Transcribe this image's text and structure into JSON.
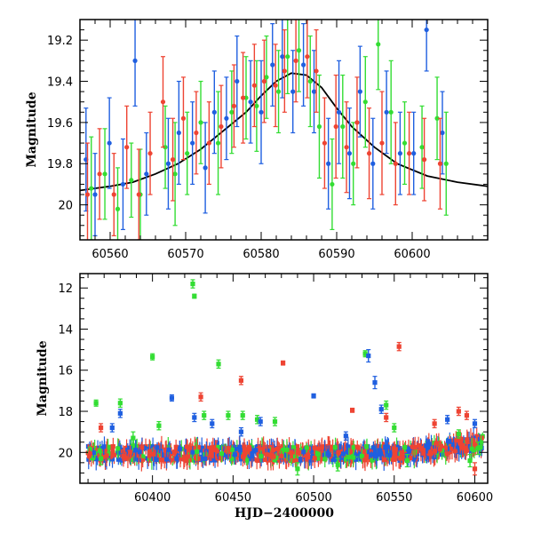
{
  "figure": {
    "colors": {
      "green": "#33dd33",
      "blue": "#1f5fe0",
      "red": "#ee4433",
      "model": "#000000",
      "frame": "#000000"
    }
  },
  "chart_data": [
    {
      "type": "scatter",
      "panel": "top",
      "xlabel": "",
      "ylabel": "Magnitude",
      "xlim": [
        60556,
        60610
      ],
      "ylim": [
        20.17,
        19.1
      ],
      "y_inverted": true,
      "x_ticks": [
        60560,
        60570,
        60580,
        60590,
        60600
      ],
      "y_ticks": [
        19.2,
        19.4,
        19.6,
        19.8,
        20
      ],
      "y_tick_labels": [
        "19.2",
        "19.4",
        "19.6",
        "19.8",
        "20"
      ],
      "model_curve": {
        "color": "#000000",
        "points": [
          [
            60556,
            19.93
          ],
          [
            60560,
            19.91
          ],
          [
            60563,
            19.89
          ],
          [
            60566,
            19.85
          ],
          [
            60569,
            19.8
          ],
          [
            60572,
            19.73
          ],
          [
            60575,
            19.64
          ],
          [
            60578,
            19.55
          ],
          [
            60580,
            19.47
          ],
          [
            60582,
            19.4
          ],
          [
            60584,
            19.36
          ],
          [
            60586,
            19.37
          ],
          [
            60588,
            19.43
          ],
          [
            60590,
            19.53
          ],
          [
            60592,
            19.62
          ],
          [
            60595,
            19.72
          ],
          [
            60598,
            19.8
          ],
          [
            60602,
            19.86
          ],
          [
            60606,
            19.89
          ],
          [
            60610,
            19.91
          ]
        ]
      },
      "series": [
        {
          "name": "",
          "color": "#33dd33",
          "points": [
            [
              60557.5,
              19.92,
              0.25
            ],
            [
              60559.3,
              19.85,
              0.22
            ],
            [
              60561.0,
              20.02,
              0.2
            ],
            [
              60562.8,
              19.88,
              0.18
            ],
            [
              60564.0,
              19.95,
              0.22
            ],
            [
              60567.3,
              19.72,
              0.2
            ],
            [
              60568.6,
              19.85,
              0.25
            ],
            [
              60570.2,
              19.75,
              0.2
            ],
            [
              60572.0,
              19.6,
              0.2
            ],
            [
              60574.3,
              19.7,
              0.25
            ],
            [
              60576.1,
              19.55,
              0.2
            ],
            [
              60578.0,
              19.48,
              0.2
            ],
            [
              60579.4,
              19.52,
              0.22
            ],
            [
              60580.7,
              19.38,
              0.2
            ],
            [
              60582.3,
              19.45,
              0.2
            ],
            [
              60583.5,
              19.28,
              0.18
            ],
            [
              60585.0,
              19.25,
              0.2
            ],
            [
              60586.5,
              19.4,
              0.22
            ],
            [
              60587.7,
              19.62,
              0.25
            ],
            [
              60589.4,
              19.9,
              0.22
            ],
            [
              60590.8,
              19.62,
              0.25
            ],
            [
              60592.2,
              19.8,
              0.2
            ],
            [
              60593.8,
              19.5,
              0.22
            ],
            [
              60595.5,
              19.22,
              0.22
            ],
            [
              60597.2,
              19.55,
              0.25
            ],
            [
              60599.0,
              19.7,
              0.2
            ],
            [
              60601.3,
              19.72,
              0.2
            ],
            [
              60603.3,
              19.58,
              0.2
            ],
            [
              60604.5,
              19.8,
              0.25
            ]
          ]
        },
        {
          "name": "",
          "color": "#1f5fe0",
          "points": [
            [
              60556.8,
              19.78,
              0.25
            ],
            [
              60558.0,
              19.95,
              0.2
            ],
            [
              60559.9,
              19.7,
              0.22
            ],
            [
              60561.7,
              19.9,
              0.22
            ],
            [
              60563.3,
              19.3,
              0.22
            ],
            [
              60564.8,
              19.85,
              0.2
            ],
            [
              60567.7,
              19.8,
              0.22
            ],
            [
              60569.1,
              19.65,
              0.25
            ],
            [
              60570.9,
              19.7,
              0.2
            ],
            [
              60572.6,
              19.82,
              0.22
            ],
            [
              60573.8,
              19.55,
              0.2
            ],
            [
              60575.4,
              19.58,
              0.2
            ],
            [
              60576.8,
              19.4,
              0.22
            ],
            [
              60578.6,
              19.5,
              0.2
            ],
            [
              60580.0,
              19.55,
              0.25
            ],
            [
              60581.5,
              19.32,
              0.2
            ],
            [
              60582.8,
              19.28,
              0.2
            ],
            [
              60584.2,
              19.45,
              0.2
            ],
            [
              60585.6,
              19.32,
              0.2
            ],
            [
              60587.0,
              19.45,
              0.2
            ],
            [
              60588.9,
              19.8,
              0.22
            ],
            [
              60590.3,
              19.55,
              0.25
            ],
            [
              60591.7,
              19.75,
              0.22
            ],
            [
              60593.1,
              19.45,
              0.22
            ],
            [
              60594.8,
              19.8,
              0.22
            ],
            [
              60596.6,
              19.55,
              0.2
            ],
            [
              60598.4,
              19.75,
              0.2
            ],
            [
              60600.2,
              19.75,
              0.2
            ],
            [
              60601.9,
              19.15,
              0.2
            ],
            [
              60604.0,
              19.65,
              0.2
            ]
          ]
        },
        {
          "name": "",
          "color": "#ee4433",
          "points": [
            [
              60557.0,
              19.95,
              0.25
            ],
            [
              60558.6,
              19.85,
              0.22
            ],
            [
              60560.5,
              19.95,
              0.2
            ],
            [
              60562.2,
              19.72,
              0.2
            ],
            [
              60563.8,
              19.95,
              0.22
            ],
            [
              60565.3,
              19.75,
              0.2
            ],
            [
              60567.0,
              19.5,
              0.22
            ],
            [
              60568.3,
              19.78,
              0.2
            ],
            [
              60569.7,
              19.58,
              0.2
            ],
            [
              60571.4,
              19.65,
              0.2
            ],
            [
              60573.1,
              19.7,
              0.2
            ],
            [
              60574.7,
              19.62,
              0.2
            ],
            [
              60576.4,
              19.52,
              0.2
            ],
            [
              60577.6,
              19.48,
              0.22
            ],
            [
              60579.1,
              19.42,
              0.2
            ],
            [
              60580.4,
              19.4,
              0.2
            ],
            [
              60581.9,
              19.42,
              0.2
            ],
            [
              60583.1,
              19.35,
              0.2
            ],
            [
              60584.6,
              19.3,
              0.2
            ],
            [
              60586.1,
              19.28,
              0.2
            ],
            [
              60587.3,
              19.35,
              0.2
            ],
            [
              60588.4,
              19.7,
              0.22
            ],
            [
              60589.9,
              19.62,
              0.25
            ],
            [
              60591.3,
              19.72,
              0.22
            ],
            [
              60592.7,
              19.6,
              0.22
            ],
            [
              60594.3,
              19.75,
              0.22
            ],
            [
              60596.0,
              19.7,
              0.25
            ],
            [
              60597.8,
              19.8,
              0.2
            ],
            [
              60599.6,
              19.75,
              0.2
            ],
            [
              60601.6,
              19.78,
              0.2
            ],
            [
              60603.7,
              19.8,
              0.22
            ]
          ]
        }
      ]
    },
    {
      "type": "scatter",
      "panel": "bottom",
      "xlabel": "HJD−2400000",
      "ylabel": "Magnitude",
      "xlim": [
        60355,
        60608
      ],
      "ylim": [
        21.5,
        11.3
      ],
      "y_inverted": true,
      "x_ticks": [
        60400,
        60450,
        60500,
        60550,
        60600
      ],
      "y_ticks": [
        12,
        14,
        16,
        18,
        20
      ],
      "series": [
        {
          "name": "",
          "color": "#33dd33",
          "points": [
            [
              60365,
              17.6,
              0.15
            ],
            [
              60368,
              20.3,
              0.3
            ],
            [
              60380,
              17.6,
              0.2
            ],
            [
              60388,
              19.3,
              0.3
            ],
            [
              60400,
              15.35,
              0.15
            ],
            [
              60404,
              18.7,
              0.2
            ],
            [
              60425,
              11.8,
              0.2
            ],
            [
              60426,
              12.4,
              0.1
            ],
            [
              60432,
              18.2,
              0.2
            ],
            [
              60441,
              15.7,
              0.2
            ],
            [
              60447,
              18.2,
              0.2
            ],
            [
              60456,
              18.2,
              0.2
            ],
            [
              60465,
              18.4,
              0.2
            ],
            [
              60476,
              18.5,
              0.2
            ],
            [
              60490,
              20.8,
              0.3
            ],
            [
              60515,
              20.6,
              0.3
            ],
            [
              60532,
              15.2,
              0.15
            ],
            [
              60545,
              17.7,
              0.2
            ],
            [
              60550,
              18.8,
              0.2
            ],
            [
              60558,
              20.4,
              0.3
            ],
            [
              60590,
              19.1,
              0.2
            ],
            [
              60597,
              20.4,
              0.3
            ],
            [
              60602,
              19.8,
              0.3
            ]
          ]
        },
        {
          "name": "",
          "color": "#1f5fe0",
          "points": [
            [
              60375,
              18.8,
              0.2
            ],
            [
              60412,
              17.35,
              0.15
            ],
            [
              60426,
              18.3,
              0.2
            ],
            [
              60437,
              18.6,
              0.2
            ],
            [
              60467,
              18.5,
              0.2
            ],
            [
              60500,
              17.25,
              0.1
            ],
            [
              60534,
              15.3,
              0.3
            ],
            [
              60538,
              16.6,
              0.3
            ],
            [
              60542,
              17.9,
              0.2
            ],
            [
              60583,
              18.4,
              0.2
            ],
            [
              60600,
              18.6,
              0.2
            ],
            [
              60380,
              18.1,
              0.2
            ],
            [
              60455,
              19.0,
              0.2
            ],
            [
              60520,
              19.2,
              0.2
            ]
          ]
        },
        {
          "name": "",
          "color": "#ee4433",
          "points": [
            [
              60368,
              18.8,
              0.2
            ],
            [
              60430,
              17.3,
              0.2
            ],
            [
              60455,
              16.5,
              0.2
            ],
            [
              60481,
              15.65,
              0.1
            ],
            [
              60524,
              17.95,
              0.1
            ],
            [
              60545,
              18.3,
              0.2
            ],
            [
              60553,
              14.85,
              0.2
            ],
            [
              60575,
              18.6,
              0.2
            ],
            [
              60590,
              18.0,
              0.2
            ],
            [
              60595,
              18.2,
              0.2
            ],
            [
              60600,
              20.8,
              0.3
            ]
          ]
        }
      ],
      "baseline_note": ""
    }
  ]
}
